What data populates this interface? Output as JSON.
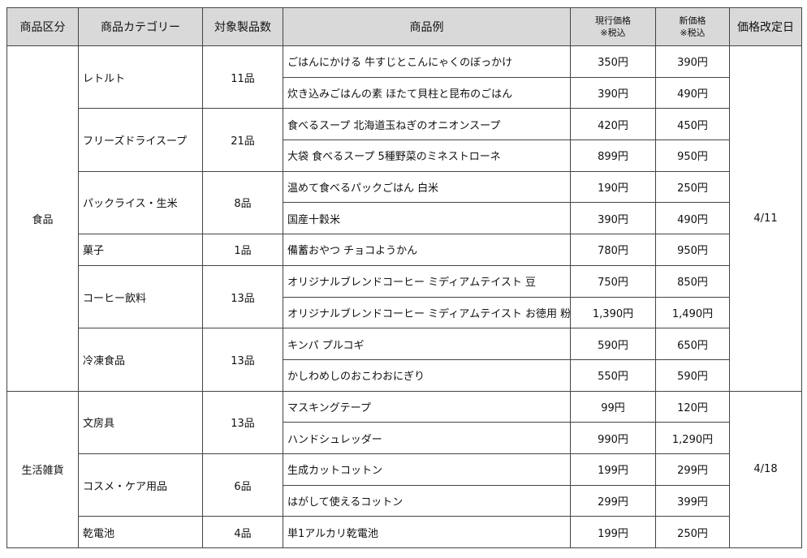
{
  "headers": {
    "division": "商品区分",
    "category": "商品カテゴリー",
    "count": "対象製品数",
    "examples": "商品例",
    "current_price": "現行価格",
    "current_price_note": "※税込",
    "new_price": "新価格",
    "new_price_note": "※税込",
    "revision_date": "価格改定日"
  },
  "divisions": [
    {
      "name": "食品",
      "date": "4/11",
      "categories": [
        {
          "name": "レトルト",
          "count": "11品",
          "items": [
            {
              "name": "ごはんにかける 牛すじとこんにゃくのぼっかけ",
              "current": "350円",
              "new": "390円"
            },
            {
              "name": "炊き込みごはんの素 ほたて貝柱と昆布のごはん",
              "current": "390円",
              "new": "490円"
            }
          ]
        },
        {
          "name": "フリーズドライスープ",
          "count": "21品",
          "items": [
            {
              "name": "食べるスープ 北海道玉ねぎのオニオンスープ",
              "current": "420円",
              "new": "450円"
            },
            {
              "name": "大袋 食べるスープ 5種野菜のミネストローネ",
              "current": "899円",
              "new": "950円"
            }
          ]
        },
        {
          "name": "パックライス・生米",
          "count": "8品",
          "items": [
            {
              "name": "温めて食べるパックごはん 白米",
              "current": "190円",
              "new": "250円"
            },
            {
              "name": "国産十穀米",
              "current": "390円",
              "new": "490円"
            }
          ]
        },
        {
          "name": "菓子",
          "count": "1品",
          "items": [
            {
              "name": "備蓄おやつ チョコようかん",
              "current": "780円",
              "new": "950円"
            }
          ]
        },
        {
          "name": "コーヒー飲料",
          "count": "13品",
          "items": [
            {
              "name": "オリジナルブレンドコーヒー ミディアムテイスト 豆",
              "current": "750円",
              "new": "850円"
            },
            {
              "name": "オリジナルブレンドコーヒー ミディアムテイスト お徳用 粉",
              "current": "1,390円",
              "new": "1,490円"
            }
          ]
        },
        {
          "name": "冷凍食品",
          "count": "13品",
          "items": [
            {
              "name": "キンパ プルコギ",
              "current": "590円",
              "new": "650円"
            },
            {
              "name": "かしわめしのおこわおにぎり",
              "current": "550円",
              "new": "590円"
            }
          ]
        }
      ]
    },
    {
      "name": "生活雑貨",
      "date": "4/18",
      "categories": [
        {
          "name": "文房具",
          "count": "13品",
          "items": [
            {
              "name": "マスキングテープ",
              "current": "99円",
              "new": "120円"
            },
            {
              "name": "ハンドシュレッダー",
              "current": "990円",
              "new": "1,290円"
            }
          ]
        },
        {
          "name": "コスメ・ケア用品",
          "count": "6品",
          "items": [
            {
              "name": "生成カットコットン",
              "current": "199円",
              "new": "299円"
            },
            {
              "name": "はがして使えるコットン",
              "current": "299円",
              "new": "399円"
            }
          ]
        },
        {
          "name": "乾電池",
          "count": "4品",
          "items": [
            {
              "name": "単1アルカリ乾電池",
              "current": "199円",
              "new": "250円"
            }
          ]
        }
      ]
    }
  ]
}
